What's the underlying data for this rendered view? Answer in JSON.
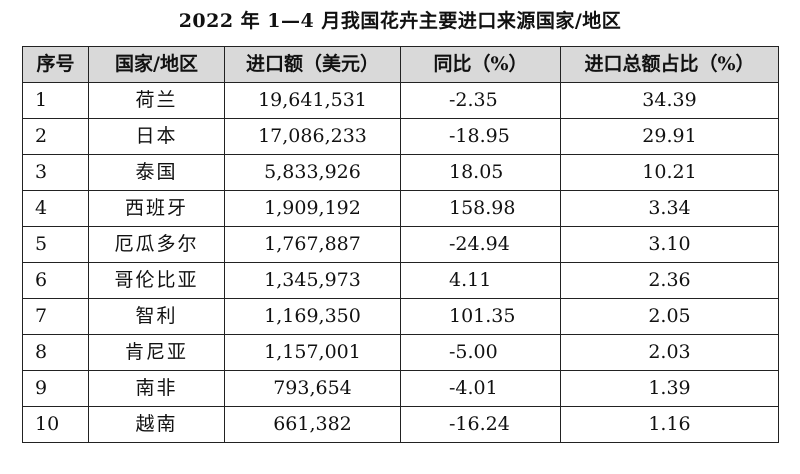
{
  "title": "2022 年 1—4 月我国花卉主要进口来源国家/地区",
  "table": {
    "headers": {
      "seq": "序号",
      "country": "国家/地区",
      "amount": "进口额（美元）",
      "yoy": "同比（%）",
      "share": "进口总额占比（%）"
    },
    "rows": [
      {
        "seq": "1",
        "country": "荷兰",
        "amount": "19,641,531",
        "yoy": "-2.35",
        "share": "34.39"
      },
      {
        "seq": "2",
        "country": "日本",
        "amount": "17,086,233",
        "yoy": "-18.95",
        "share": "29.91"
      },
      {
        "seq": "3",
        "country": "泰国",
        "amount": "5,833,926",
        "yoy": "18.05",
        "share": "10.21"
      },
      {
        "seq": "4",
        "country": "西班牙",
        "amount": "1,909,192",
        "yoy": "158.98",
        "share": "3.34"
      },
      {
        "seq": "5",
        "country": "厄瓜多尔",
        "amount": "1,767,887",
        "yoy": "-24.94",
        "share": "3.10"
      },
      {
        "seq": "6",
        "country": "哥伦比亚",
        "amount": "1,345,973",
        "yoy": "4.11",
        "share": "2.36"
      },
      {
        "seq": "7",
        "country": "智利",
        "amount": "1,169,350",
        "yoy": "101.35",
        "share": "2.05"
      },
      {
        "seq": "8",
        "country": "肯尼亚",
        "amount": "1,157,001",
        "yoy": "-5.00",
        "share": "2.03"
      },
      {
        "seq": "9",
        "country": "南非",
        "amount": "793,654",
        "yoy": "-4.01",
        "share": "1.39"
      },
      {
        "seq": "10",
        "country": "越南",
        "amount": "661,382",
        "yoy": "-16.24",
        "share": "1.16"
      }
    ]
  }
}
